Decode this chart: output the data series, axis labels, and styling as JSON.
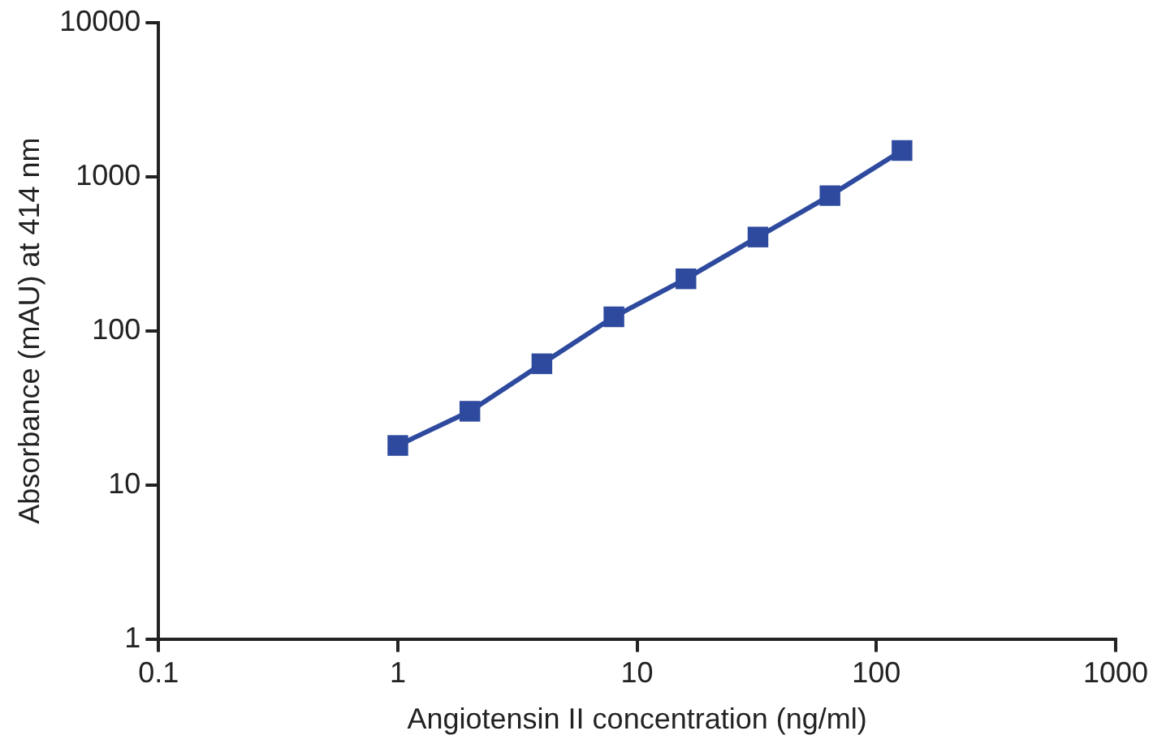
{
  "chart_data": {
    "type": "line",
    "xlabel": "Angiotensin II concentration (ng/ml)",
    "ylabel": "Absorbance (mAU) at 414 nm",
    "x": [
      1,
      2,
      4,
      8,
      16,
      32,
      64,
      128
    ],
    "series": [
      {
        "color": "#2e4a9e",
        "values": [
          18,
          30,
          61,
          123,
          217,
          405,
          752,
          1475
        ]
      }
    ],
    "xlim": [
      0.1,
      1000
    ],
    "xticks": [
      0.1,
      1,
      10,
      100,
      1000
    ],
    "ylim": [
      1,
      10000
    ],
    "yticks": [
      1,
      10,
      100,
      1000,
      10000
    ],
    "log": "xy",
    "grid": false,
    "marker": "square",
    "line_style": "solid"
  }
}
